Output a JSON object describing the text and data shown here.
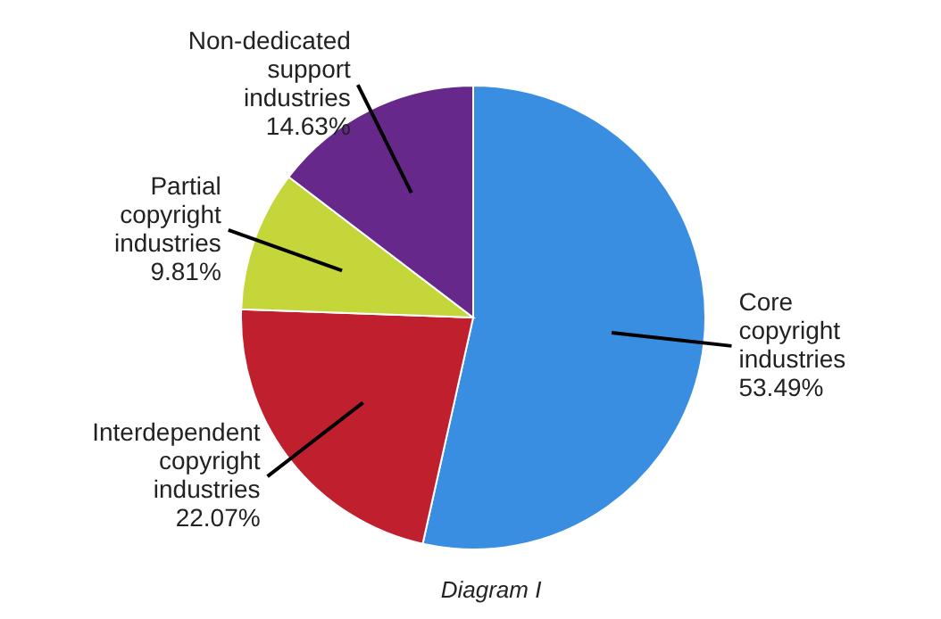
{
  "chart_data": {
    "type": "pie",
    "categories": [
      "Core copyright industries",
      "Interdependent copyright industries",
      "Partial copyright industries",
      "Non-dedicated support industries"
    ],
    "values": [
      53.49,
      22.07,
      9.81,
      14.63
    ],
    "value_labels": [
      "53.49%",
      "22.07%",
      "9.81%",
      "14.63%"
    ],
    "colors": [
      "#3a8ee2",
      "#c0202e",
      "#c4d63a",
      "#66288a"
    ],
    "annotations": [
      "Diagram I"
    ]
  }
}
